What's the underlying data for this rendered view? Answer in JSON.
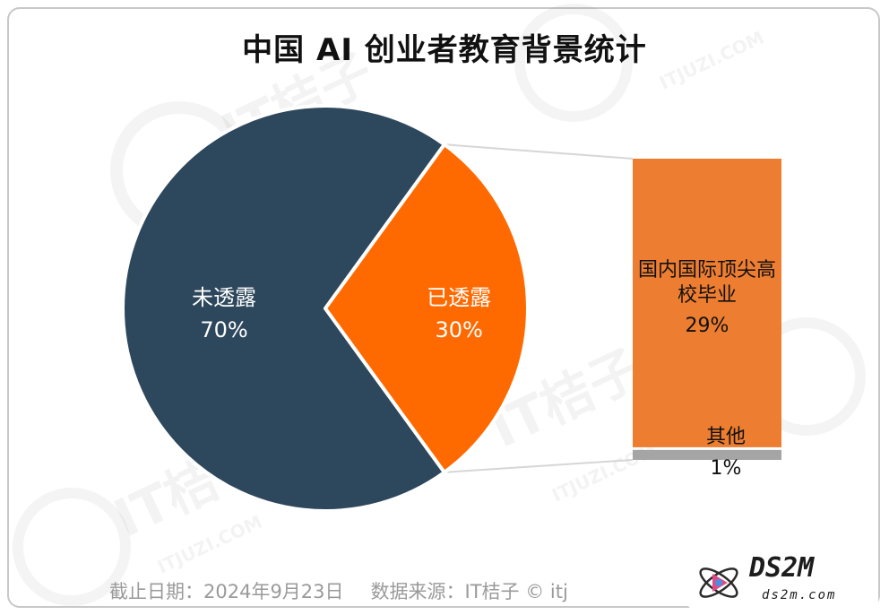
{
  "chart_data": {
    "type": "pie",
    "title": "中国 AI 创业者教育背景统计",
    "pie": {
      "slices": [
        {
          "label": "未透露",
          "value": 70,
          "display": "70%",
          "color": "#2d475c"
        },
        {
          "label": "已透露",
          "value": 30,
          "display": "30%",
          "color": "#ff6a00"
        }
      ]
    },
    "breakdown_of": "已透露",
    "breakdown_bar": {
      "segments": [
        {
          "label": "国内国际顶尖高校毕业",
          "value": 29,
          "display": "29%",
          "color": "#ed7d31"
        },
        {
          "label": "其他",
          "value": 1,
          "display": "1%",
          "color": "#a5a5a5"
        }
      ]
    }
  },
  "footer": {
    "date_text": "截止日期：2024年9月23日",
    "source_text": "数据来源：IT桔子 © itj"
  },
  "watermark": {
    "brand": "IT桔子",
    "url": "ITJUZI.COM"
  },
  "badge": {
    "name": "DS2M",
    "url": "ds2m.com"
  }
}
